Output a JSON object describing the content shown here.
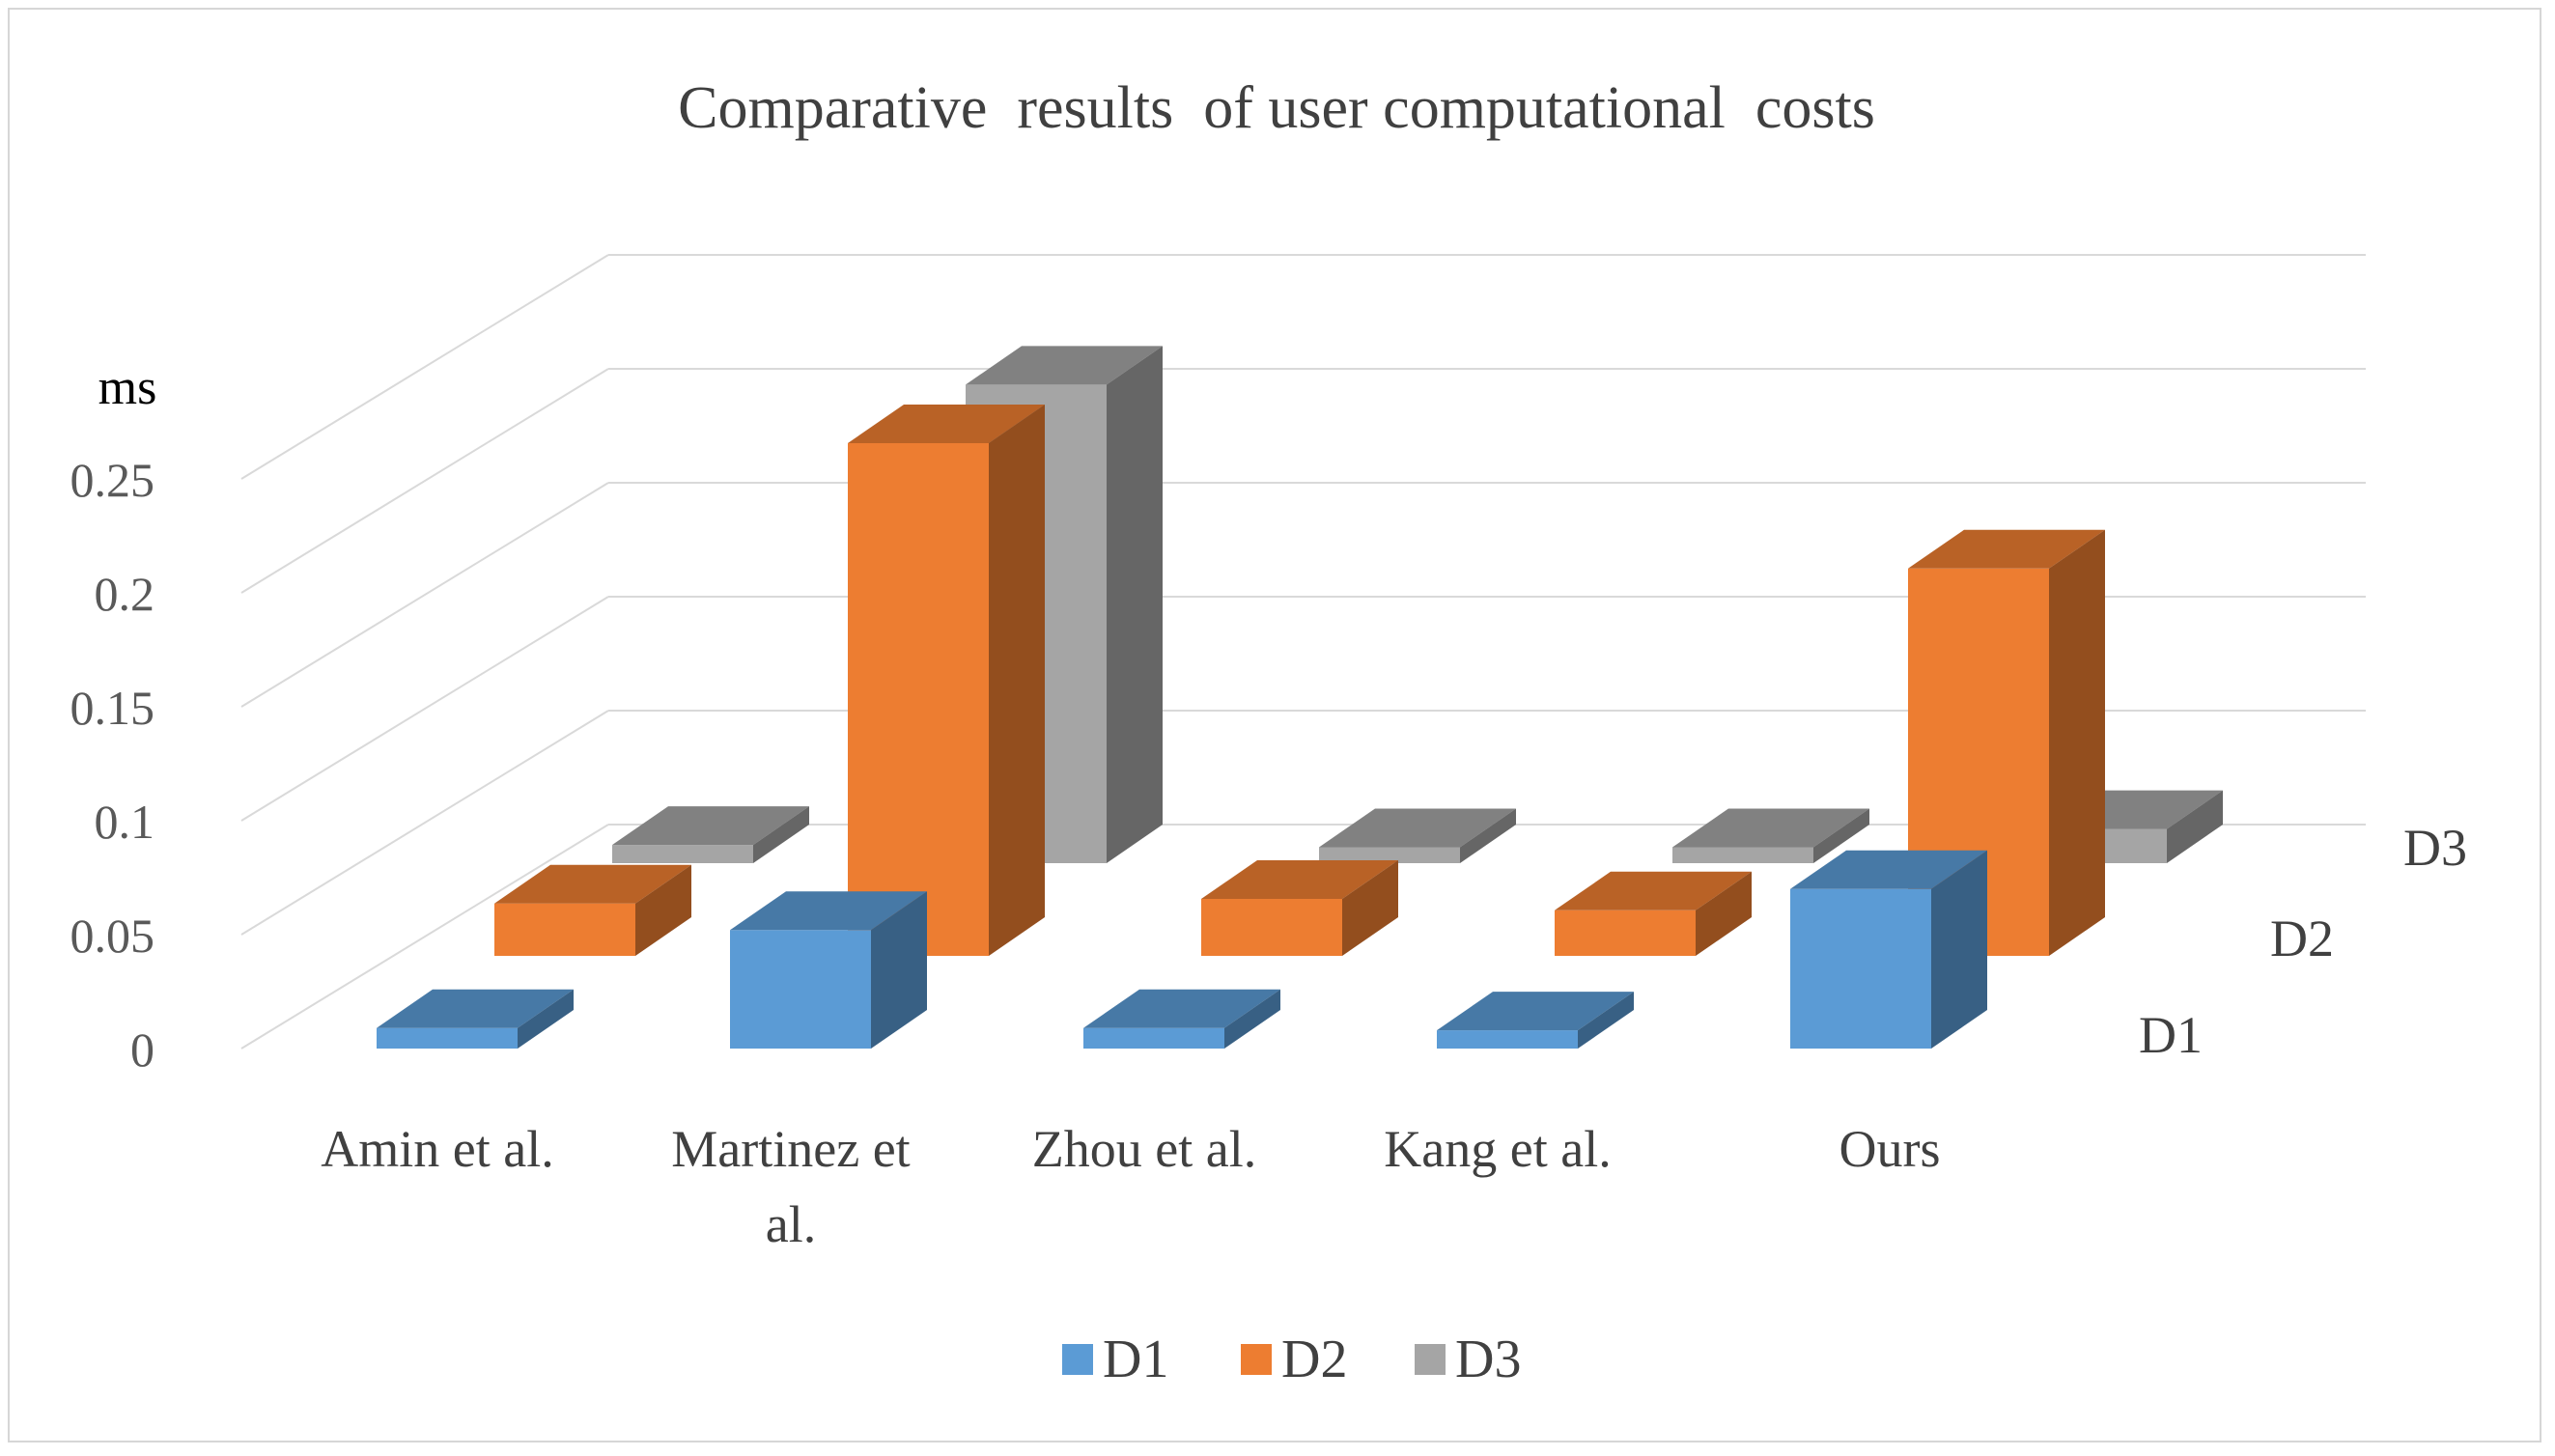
{
  "chart_data": {
    "type": "bar",
    "style": "3d-clustered-depth",
    "title": "Comparative  results  of user computational  costs",
    "ylabel": "ms",
    "xlabel": "",
    "ylim": [
      0,
      0.25
    ],
    "yticks": [
      "0",
      "0.05",
      "0.1",
      "0.15",
      "0.2",
      "0.25"
    ],
    "categories": [
      "Amin et al.",
      "Martinez et al.",
      "Zhou et al.",
      "Kang et al.",
      "Ours"
    ],
    "category_label_lines": [
      [
        "Amin et al."
      ],
      [
        "Martinez et",
        "al."
      ],
      [
        "Zhou et al."
      ],
      [
        "Kang et al."
      ],
      [
        "Ours"
      ]
    ],
    "series": [
      {
        "name": "D1",
        "color": "#5b9bd5",
        "values": [
          0.009,
          0.052,
          0.009,
          0.008,
          0.07
        ]
      },
      {
        "name": "D2",
        "color": "#ed7d31",
        "values": [
          0.023,
          0.225,
          0.025,
          0.02,
          0.17
        ]
      },
      {
        "name": "D3",
        "color": "#a5a5a5",
        "values": [
          0.008,
          0.21,
          0.007,
          0.007,
          0.015
        ]
      }
    ],
    "depth_labels": [
      "D1",
      "D2",
      "D3"
    ],
    "legend": {
      "position": "bottom",
      "entries": [
        "D1",
        "D2",
        "D3"
      ]
    },
    "grid": true
  }
}
